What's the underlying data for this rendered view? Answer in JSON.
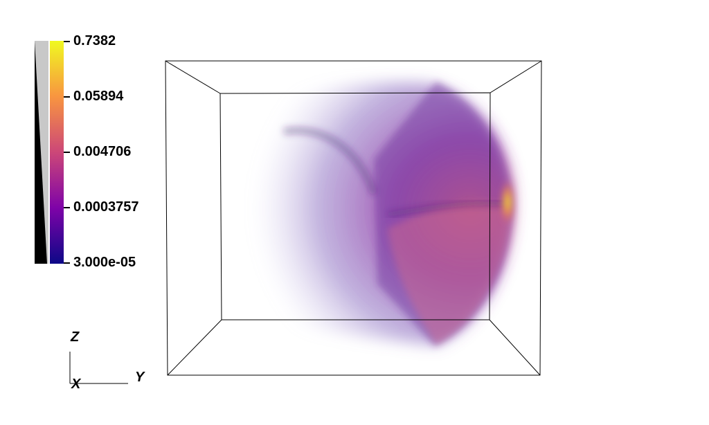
{
  "colorbar": {
    "labels": [
      "0.7382",
      "0.05894",
      "0.004706",
      "0.0003757",
      "3.000e-05"
    ],
    "gradient_colors": [
      "#f0f921",
      "#f89540",
      "#cc4778",
      "#7e03a8",
      "#0d0887"
    ],
    "opacity_colors": [
      "#000000",
      "#c8c8c8"
    ]
  },
  "volume": {
    "colors": {
      "outline": "#000000",
      "plume_light": "#b8a6dc",
      "plume_mid": "#8a4bb0",
      "plume_dark": "#5a2a8a",
      "hot_core": "#f0f921",
      "warm": "#e07c8c"
    }
  },
  "axes": {
    "z_label": "Z",
    "x_label": "X",
    "y_label": "Y"
  }
}
